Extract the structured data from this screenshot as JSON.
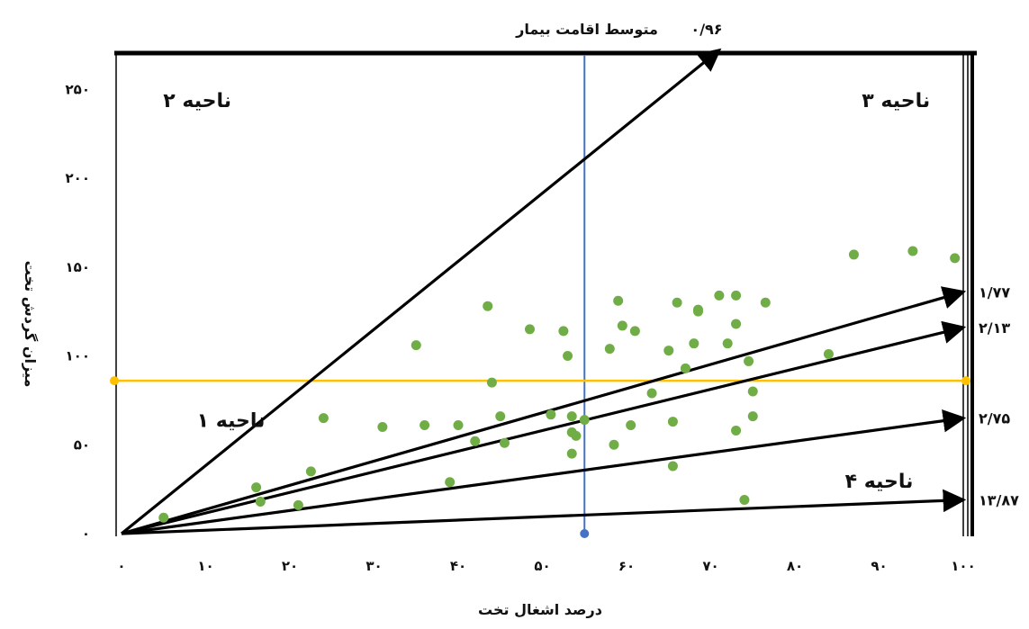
{
  "chart_data": {
    "type": "scatter",
    "title": "",
    "xlabel": "درصد اشغال تخت",
    "ylabel": "میزان گردش تخت",
    "xlim": [
      0,
      100
    ],
    "ylim": [
      0,
      260
    ],
    "x_ticks": [
      "۰",
      "۱۰",
      "۲۰",
      "۳۰",
      "۴۰",
      "۵۰",
      "۶۰",
      "۷۰",
      "۸۰",
      "۹۰",
      "۱۰۰"
    ],
    "y_ticks": [
      "۰",
      "۵۰",
      "۱۰۰",
      "۱۵۰",
      "۲۰۰",
      "۲۵۰"
    ],
    "x_tick_values": [
      0,
      10,
      20,
      30,
      40,
      50,
      60,
      70,
      80,
      90,
      100
    ],
    "y_tick_values": [
      0,
      50,
      100,
      150,
      200,
      250
    ],
    "grid": false,
    "reference_lines": {
      "vertical_x": 55,
      "horizontal_y": 86,
      "vertical_color": "#4472c4",
      "horizontal_color": "#ffc000"
    },
    "top_label": {
      "value": "۰/۹۶",
      "text": "متوسط اقامت بیمار"
    },
    "rays": [
      {
        "label": "۰/۹۶",
        "x_end": 71,
        "y_end": 272
      },
      {
        "label": "۱/۷۷",
        "x_end": 100,
        "y_end": 136
      },
      {
        "label": "۲/۱۳",
        "x_end": 100,
        "y_end": 116
      },
      {
        "label": "۲/۷۵",
        "x_end": 100,
        "y_end": 65
      },
      {
        "label": "۱۳/۸۷",
        "x_end": 100,
        "y_end": 19
      }
    ],
    "regions": [
      {
        "label": "ناحیه ۱",
        "x": 13,
        "y": 64
      },
      {
        "label": "ناحیه ۲",
        "x": 9,
        "y": 244
      },
      {
        "label": "ناحیه ۳",
        "x": 92,
        "y": 244
      },
      {
        "label": "ناحیه ۴",
        "x": 90,
        "y": 30
      }
    ],
    "point_color": "#70ad47",
    "points": [
      [
        5,
        9
      ],
      [
        16,
        26
      ],
      [
        16.5,
        18
      ],
      [
        21,
        16
      ],
      [
        22.5,
        35
      ],
      [
        24,
        65
      ],
      [
        31,
        60
      ],
      [
        35,
        106
      ],
      [
        36,
        61
      ],
      [
        39,
        29
      ],
      [
        40,
        61
      ],
      [
        42,
        52
      ],
      [
        43.5,
        128
      ],
      [
        44,
        85
      ],
      [
        45,
        66
      ],
      [
        45.5,
        51
      ],
      [
        48.5,
        115
      ],
      [
        51,
        67
      ],
      [
        52.5,
        114
      ],
      [
        53,
        100
      ],
      [
        53.5,
        57
      ],
      [
        53.5,
        45
      ],
      [
        53.5,
        66
      ],
      [
        54,
        55
      ],
      [
        55,
        64
      ],
      [
        58,
        104
      ],
      [
        58.5,
        50
      ],
      [
        59,
        131
      ],
      [
        59.5,
        117
      ],
      [
        60.5,
        61
      ],
      [
        61,
        114
      ],
      [
        63,
        79
      ],
      [
        65,
        103
      ],
      [
        65.5,
        38
      ],
      [
        65.5,
        63
      ],
      [
        66,
        130
      ],
      [
        67,
        93
      ],
      [
        68,
        107
      ],
      [
        68.5,
        125
      ],
      [
        68.5,
        126
      ],
      [
        71,
        134
      ],
      [
        72,
        107
      ],
      [
        73,
        58
      ],
      [
        73,
        118
      ],
      [
        73,
        134
      ],
      [
        74,
        19
      ],
      [
        74.5,
        97
      ],
      [
        75,
        66
      ],
      [
        75,
        80
      ],
      [
        76.5,
        130
      ],
      [
        84,
        101
      ],
      [
        87,
        157
      ],
      [
        94,
        159
      ],
      [
        99,
        155
      ]
    ]
  }
}
